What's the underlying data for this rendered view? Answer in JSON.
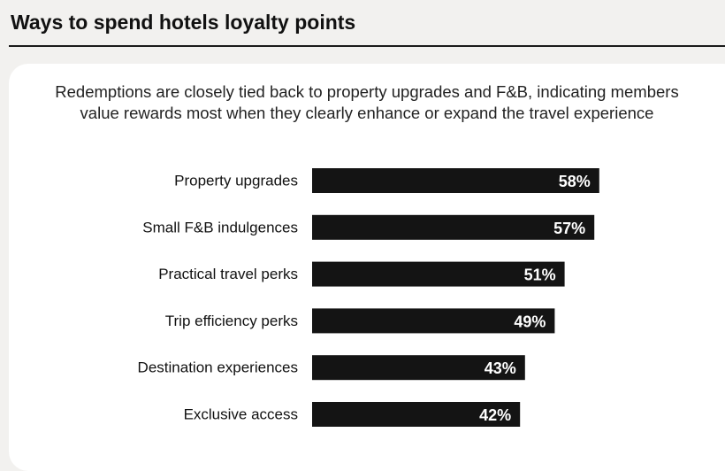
{
  "header": {
    "title": "Ways to spend hotels loyalty points"
  },
  "chart_data": {
    "type": "bar",
    "orientation": "horizontal",
    "title": "",
    "subtitle_lines": [
      "Redemptions are closely tied back to property upgrades and F&B, indicating members",
      "value rewards most when they clearly enhance or expand the travel experience"
    ],
    "categories": [
      "Property upgrades",
      "Small F&B indulgences",
      "Practical travel perks",
      "Trip efficiency perks",
      "Destination experiences",
      "Exclusive access"
    ],
    "values": [
      58,
      57,
      51,
      49,
      43,
      42
    ],
    "value_labels": [
      "58%",
      "57%",
      "51%",
      "49%",
      "43%",
      "42%"
    ],
    "xlim": [
      0,
      100
    ],
    "grid": false,
    "legend": "none",
    "bar_color": "#141414",
    "label_color": "#ffffff"
  }
}
